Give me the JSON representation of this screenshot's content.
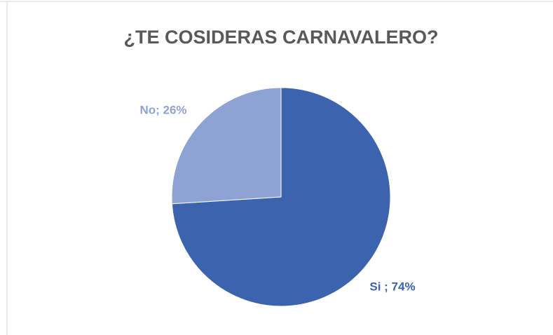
{
  "chart_data": {
    "type": "pie",
    "title": "¿TE COSIDERAS CARNAVALERO?",
    "values": [
      74,
      26
    ],
    "value_labels": [
      "Si ; 74%",
      "No; 26%"
    ],
    "colors": [
      "#3c63ad",
      "#8fa2d4"
    ]
  }
}
